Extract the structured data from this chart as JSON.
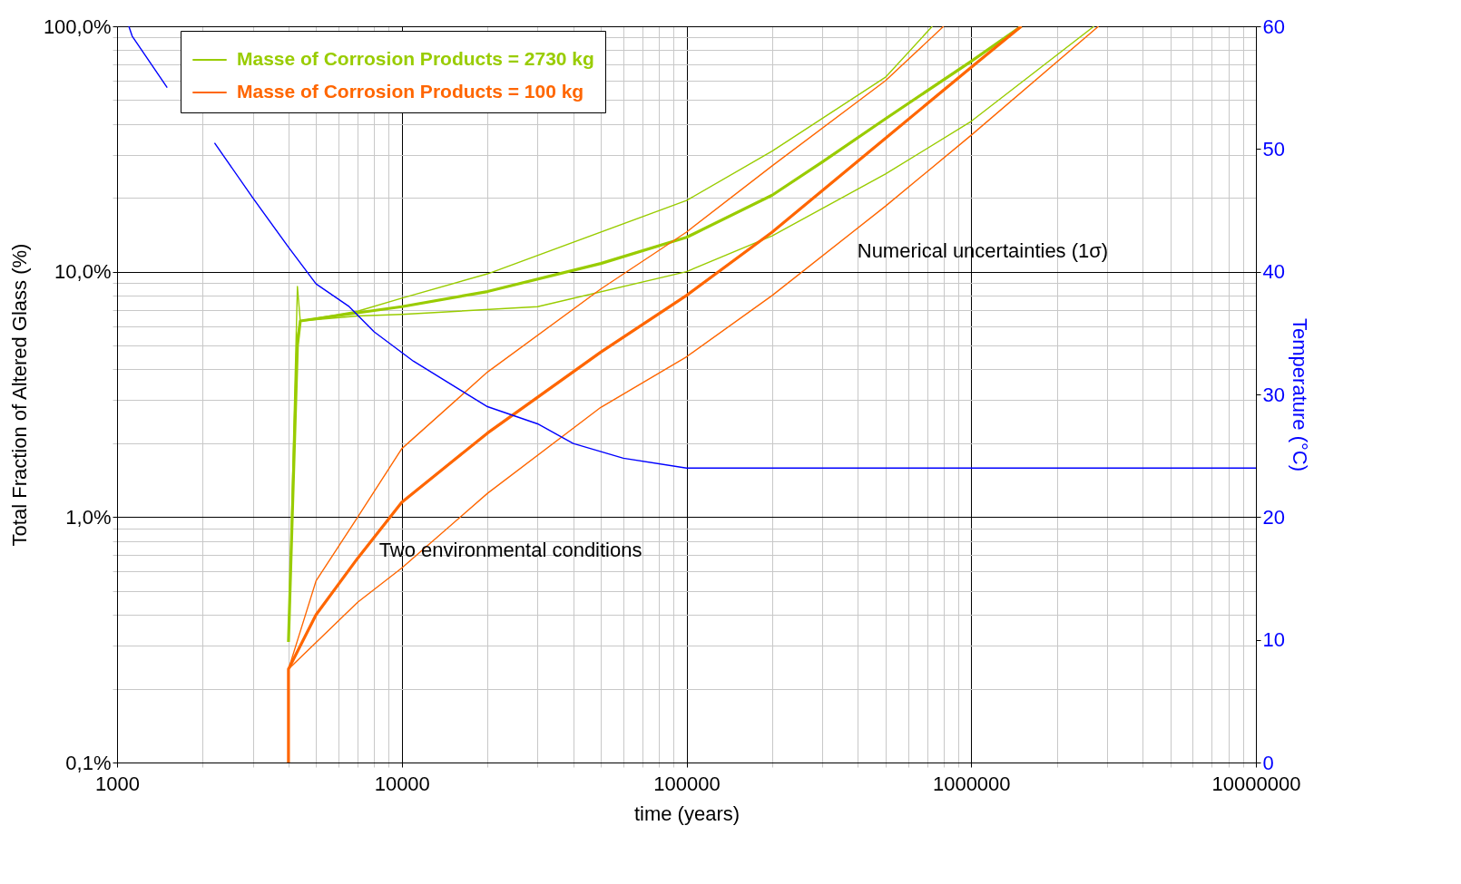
{
  "chart_data": {
    "type": "line",
    "xlabel": "time (years)",
    "ylabel": "Total Fraction of Altered Glass (%)",
    "y2label": "Temperature (°C)",
    "log": "xy",
    "grid": true,
    "legend": "top",
    "xlim": [
      1000,
      10000000
    ],
    "xticks": [
      1000,
      {
        "value": 2000,
        "label": null
      },
      {
        "value": 3000,
        "label": null
      },
      {
        "value": 4000,
        "label": null
      },
      {
        "value": 5000,
        "label": null
      },
      {
        "value": 6000,
        "label": null
      },
      {
        "value": 7000,
        "label": null
      },
      {
        "value": 8000,
        "label": null
      },
      {
        "value": 9000,
        "label": null
      },
      10000,
      {
        "value": 20000,
        "label": null
      },
      {
        "value": 30000,
        "label": null
      },
      {
        "value": 40000,
        "label": null
      },
      {
        "value": 50000,
        "label": null
      },
      {
        "value": 60000,
        "label": null
      },
      {
        "value": 70000,
        "label": null
      },
      {
        "value": 80000,
        "label": null
      },
      {
        "value": 90000,
        "label": null
      },
      100000,
      {
        "value": 200000,
        "label": null
      },
      {
        "value": 300000,
        "label": null
      },
      {
        "value": 400000,
        "label": null
      },
      {
        "value": 500000,
        "label": null
      },
      {
        "value": 600000,
        "label": null
      },
      {
        "value": 700000,
        "label": null
      },
      {
        "value": 800000,
        "label": null
      },
      {
        "value": 900000,
        "label": null
      },
      1000000,
      {
        "value": 2000000,
        "label": null
      },
      {
        "value": 3000000,
        "label": null
      },
      {
        "value": 4000000,
        "label": null
      },
      {
        "value": 5000000,
        "label": null
      },
      {
        "value": 6000000,
        "label": null
      },
      {
        "value": 7000000,
        "label": null
      },
      {
        "value": 8000000,
        "label": null
      },
      {
        "value": 9000000,
        "label": null
      },
      10000000
    ],
    "ylim": [
      0.1,
      100
    ],
    "yticks": [
      {
        "value": 0.1,
        "label": "0,1%"
      },
      {
        "value": 0.2,
        "label": null
      },
      {
        "value": 0.3,
        "label": null
      },
      {
        "value": 0.4,
        "label": null
      },
      {
        "value": 0.5,
        "label": null
      },
      {
        "value": 0.6,
        "label": null
      },
      {
        "value": 0.7,
        "label": null
      },
      {
        "value": 0.8,
        "label": null
      },
      {
        "value": 0.9,
        "label": null
      },
      {
        "value": 1,
        "label": "1,0%"
      },
      {
        "value": 2,
        "label": null
      },
      {
        "value": 3,
        "label": null
      },
      {
        "value": 4,
        "label": null
      },
      {
        "value": 5,
        "label": null
      },
      {
        "value": 6,
        "label": null
      },
      {
        "value": 7,
        "label": null
      },
      {
        "value": 8,
        "label": null
      },
      {
        "value": 9,
        "label": null
      },
      {
        "value": 10,
        "label": "10,0%"
      },
      {
        "value": 20,
        "label": null
      },
      {
        "value": 30,
        "label": null
      },
      {
        "value": 40,
        "label": null
      },
      {
        "value": 50,
        "label": null
      },
      {
        "value": 60,
        "label": null
      },
      {
        "value": 70,
        "label": null
      },
      {
        "value": 80,
        "label": null
      },
      {
        "value": 90,
        "label": null
      },
      {
        "value": 100,
        "label": "100,0%"
      }
    ],
    "y2lim": [
      0,
      60
    ],
    "y2ticks": [
      0,
      10,
      20,
      30,
      40,
      50,
      60
    ],
    "series": [
      {
        "name": "Masse of Corrosion Products = 2730 kg",
        "color": "#99cc00",
        "x": [
          4000,
          4300,
          4400,
          7000,
          10000,
          20000,
          50000,
          100000,
          200000,
          300000,
          500000,
          1000000,
          1500000
        ],
        "values": [
          0.31,
          5,
          6.3,
          6.8,
          7.2,
          8.3,
          10.8,
          13.8,
          20.5,
          28,
          42,
          72,
          100
        ]
      },
      {
        "color": "#99cc00",
        "x": [
          4000,
          4300,
          4400,
          7000,
          10000,
          20000,
          100000,
          200000,
          500000,
          730000
        ],
        "values": [
          0.31,
          8.7,
          6.3,
          6.9,
          7.8,
          9.8,
          19.5,
          31,
          62,
          100
        ]
      },
      {
        "color": "#99cc00",
        "x": [
          4000,
          4300,
          4400,
          7000,
          10000,
          30000,
          100000,
          200000,
          500000,
          1000000,
          2700000
        ],
        "values": [
          0.31,
          5.5,
          6.3,
          6.6,
          6.7,
          7.2,
          10,
          14,
          25,
          41,
          100
        ]
      },
      {
        "name": "Masse of Corrosion Products = 100 kg",
        "color": "#ff6600",
        "x": [
          4000,
          4000,
          5000,
          7000,
          10000,
          20000,
          50000,
          100000,
          200000,
          500000,
          1000000,
          1500000
        ],
        "values": [
          0.1,
          0.24,
          0.4,
          0.68,
          1.15,
          2.2,
          4.7,
          8,
          14.5,
          35,
          68,
          100
        ]
      },
      {
        "color": "#ff6600",
        "x": [
          4000,
          5000,
          7000,
          10000,
          20000,
          50000,
          100000,
          200000,
          500000,
          800000
        ],
        "values": [
          0.24,
          0.55,
          1.0,
          1.9,
          3.9,
          8.5,
          14.5,
          27,
          60,
          100
        ]
      },
      {
        "color": "#ff6600",
        "x": [
          4000,
          7000,
          10000,
          20000,
          50000,
          100000,
          200000,
          500000,
          1000000,
          2800000
        ],
        "values": [
          0.24,
          0.45,
          0.62,
          1.25,
          2.8,
          4.5,
          8,
          18.5,
          36,
          100
        ]
      },
      {
        "color": "#0000ff",
        "axis": "y2",
        "x": [
          1100,
          1130,
          1500,
          2000,
          2200,
          3000,
          4000,
          5000,
          6500,
          8000,
          11000,
          20000,
          30000,
          40000,
          60000,
          100000,
          10000000
        ],
        "values": [
          60,
          59.2,
          55,
          null,
          50.5,
          46,
          42,
          39,
          37.2,
          35.1,
          32.7,
          29,
          27.6,
          26,
          24.8,
          24,
          24
        ]
      }
    ],
    "annotations": [
      "Two environmental conditions",
      "Numerical uncertainties (1σ)"
    ]
  }
}
